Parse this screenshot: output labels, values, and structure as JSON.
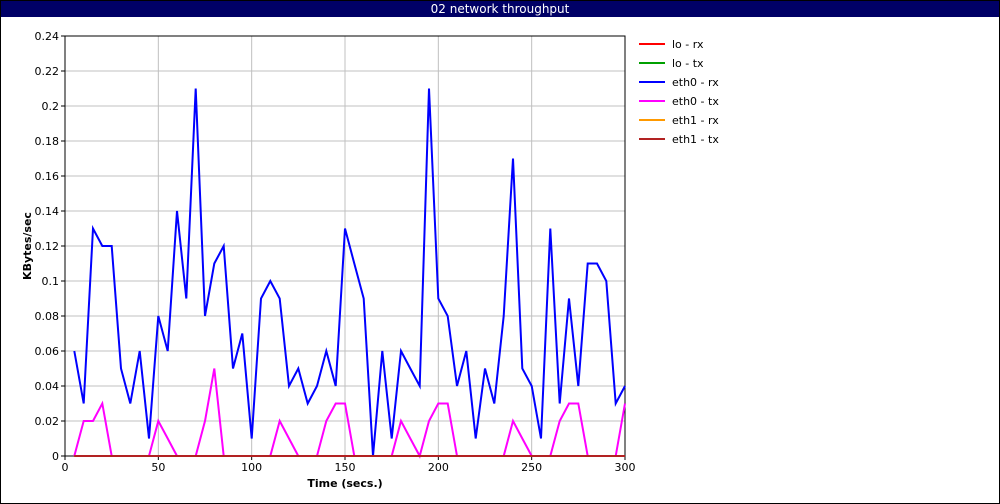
{
  "window": {
    "title": "02 network throughput"
  },
  "chart_data": {
    "type": "line",
    "title": "02 network throughput",
    "xlabel": "Time (secs.)",
    "ylabel": "KBytes/sec",
    "xlim": [
      0,
      300
    ],
    "ylim": [
      0,
      0.24
    ],
    "xticks": [
      0,
      50,
      100,
      150,
      200,
      250,
      300
    ],
    "yticks": [
      0,
      0.02,
      0.04,
      0.06,
      0.08,
      0.1,
      0.12,
      0.14,
      0.16,
      0.18,
      0.2,
      0.22,
      0.24
    ],
    "grid": true,
    "legend_position": "right",
    "series": [
      {
        "name": "lo - rx",
        "color": "#ff0000",
        "x": [
          5,
          300
        ],
        "values": [
          0,
          0
        ]
      },
      {
        "name": "lo - tx",
        "color": "#00a000",
        "x": [
          5,
          300
        ],
        "values": [
          0,
          0
        ]
      },
      {
        "name": "eth0 - rx",
        "color": "#0000ff",
        "x": [
          5,
          10,
          15,
          20,
          25,
          30,
          35,
          40,
          45,
          50,
          55,
          60,
          65,
          70,
          75,
          80,
          85,
          90,
          95,
          100,
          105,
          110,
          115,
          120,
          125,
          130,
          135,
          140,
          145,
          150,
          155,
          160,
          165,
          170,
          175,
          180,
          185,
          190,
          195,
          200,
          205,
          210,
          215,
          220,
          225,
          230,
          235,
          240,
          245,
          250,
          255,
          260,
          265,
          270,
          275,
          280,
          285,
          290,
          295,
          300
        ],
        "values": [
          0.06,
          0.03,
          0.13,
          0.12,
          0.12,
          0.05,
          0.03,
          0.06,
          0.01,
          0.08,
          0.06,
          0.14,
          0.09,
          0.21,
          0.08,
          0.11,
          0.12,
          0.05,
          0.07,
          0.01,
          0.09,
          0.1,
          0.09,
          0.04,
          0.05,
          0.03,
          0.04,
          0.06,
          0.04,
          0.13,
          0.11,
          0.09,
          0.0,
          0.06,
          0.01,
          0.06,
          0.05,
          0.04,
          0.21,
          0.09,
          0.08,
          0.04,
          0.06,
          0.01,
          0.05,
          0.03,
          0.08,
          0.17,
          0.05,
          0.04,
          0.01,
          0.13,
          0.03,
          0.09,
          0.04,
          0.11,
          0.11,
          0.1,
          0.03,
          0.04
        ]
      },
      {
        "name": "eth0 - tx",
        "color": "#ff00ff",
        "x": [
          5,
          10,
          15,
          20,
          25,
          30,
          35,
          40,
          45,
          50,
          55,
          60,
          65,
          70,
          75,
          80,
          85,
          90,
          95,
          100,
          105,
          110,
          115,
          120,
          125,
          130,
          135,
          140,
          145,
          150,
          155,
          160,
          165,
          170,
          175,
          180,
          185,
          190,
          195,
          200,
          205,
          210,
          215,
          220,
          225,
          230,
          235,
          240,
          245,
          250,
          255,
          260,
          265,
          270,
          275,
          280,
          285,
          290,
          295,
          300
        ],
        "values": [
          0,
          0.02,
          0.02,
          0.03,
          0,
          0,
          0,
          0,
          0,
          0.02,
          0.01,
          0,
          0,
          0,
          0.02,
          0.05,
          0,
          0,
          0,
          0,
          0,
          0,
          0.02,
          0.01,
          0,
          0,
          0,
          0.02,
          0.03,
          0.03,
          0,
          0,
          0,
          0,
          0,
          0.02,
          0.01,
          0,
          0.02,
          0.03,
          0.03,
          0,
          0,
          0,
          0,
          0,
          0,
          0.02,
          0.01,
          0,
          0,
          0,
          0.02,
          0.03,
          0.03,
          0,
          0,
          0,
          0,
          0.03
        ]
      },
      {
        "name": "eth1 - rx",
        "color": "#ff9900",
        "x": [
          5,
          300
        ],
        "values": [
          0,
          0
        ]
      },
      {
        "name": "eth1 - tx",
        "color": "#b22222",
        "x": [
          5,
          300
        ],
        "values": [
          0,
          0
        ]
      }
    ]
  }
}
